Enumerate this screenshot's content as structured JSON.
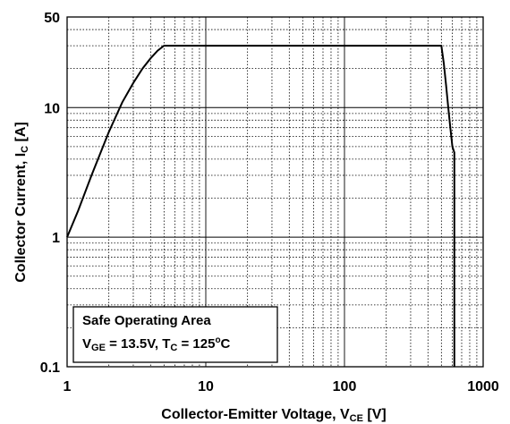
{
  "chart_data": {
    "type": "line",
    "title": "",
    "xlabel": {
      "main": "Collector-Emitter Voltage, V",
      "sub": "CE",
      "unit": " [V]"
    },
    "ylabel": {
      "main": "Collector Current, I",
      "sub": "C",
      "unit": " [A]"
    },
    "xscale": "log",
    "yscale": "log",
    "xlim": [
      1,
      1000
    ],
    "ylim": [
      0.1,
      50
    ],
    "x_tick_labels": [
      "1",
      "10",
      "100",
      "1000"
    ],
    "x_tick_values": [
      1,
      10,
      100,
      1000
    ],
    "y_tick_labels": [
      "0.1",
      "1",
      "10",
      "50"
    ],
    "y_tick_values": [
      0.1,
      1,
      10,
      50
    ],
    "grid": true,
    "series": [
      {
        "x": [
          1.0,
          1.2,
          1.5,
          2.0,
          2.5,
          3.0,
          3.5,
          4.0,
          4.5,
          5.0,
          100,
          500,
          520,
          540,
          560,
          580,
          600,
          620,
          620
        ],
        "y": [
          1.0,
          1.6,
          3.0,
          6.5,
          11.0,
          15.5,
          20.0,
          24.0,
          27.5,
          30.0,
          30.0,
          30.0,
          22.0,
          15.0,
          10.0,
          7.0,
          5.0,
          4.5,
          0.1
        ]
      }
    ],
    "annotation": {
      "line1": "Safe Operating Area",
      "line2": {
        "v": "V",
        "v_sub": "GE",
        "v_val": " = 13.5V, ",
        "t": "T",
        "t_sub": "C",
        "t_val": " = 125",
        "deg": "o",
        "unit": "C"
      }
    }
  }
}
